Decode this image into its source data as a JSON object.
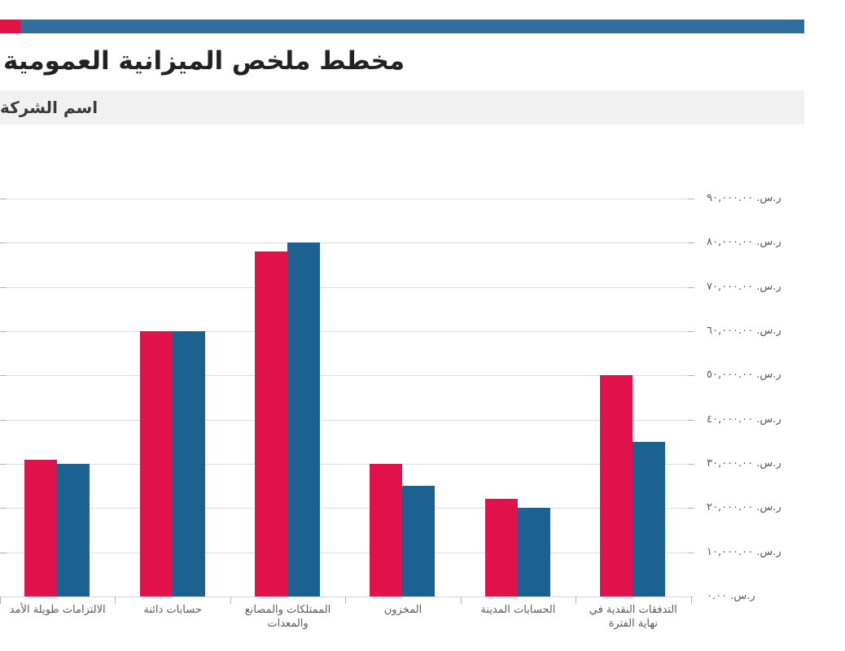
{
  "header": {
    "banner": {
      "accent_color": "#e01347",
      "bar_color": "#2e6d9c"
    },
    "title": "مخطط ملخص الميزانية العمومية",
    "company_row": {
      "label": "اسم الشركة",
      "background": "#f1f1f1"
    }
  },
  "chart_data": {
    "type": "bar",
    "title": "مخطط ملخص الميزانية العمومية",
    "direction": "rtl",
    "grid": true,
    "legend_position": "none",
    "categories": [
      "التدفقات النقدية في نهاية الفترة",
      "الحسابات المدينة",
      "المخزون",
      "الممتلكات والمصانع والمعدات",
      "حسابات دائنة",
      "الالتزامات طويلة الأمد"
    ],
    "series": [
      {
        "name": "red-series",
        "color": "#e0114b",
        "position_in_pair": "left",
        "values": [
          50000,
          22000,
          30000,
          78000,
          60000,
          31000
        ]
      },
      {
        "name": "blue-series",
        "color": "#1c6291",
        "position_in_pair": "right",
        "values": [
          35000,
          20000,
          25000,
          80000,
          60000,
          30000
        ]
      }
    ],
    "y_axis": {
      "side": "right",
      "min": 0,
      "max": 90000,
      "step": 10000,
      "currency": "ر.س.",
      "tick_labels_top_to_bottom": [
        "ر.س. ٩٠,٠٠٠.٠٠",
        "ر.س. ٨٠,٠٠٠.٠٠",
        "ر.س. ٧٠,٠٠٠.٠٠",
        "ر.س. ٦٠,٠٠٠.٠٠",
        "ر.س. ٥٠,٠٠٠.٠٠",
        "ر.س. ٤٠,٠٠٠.٠٠",
        "ر.س. ٣٠,٠٠٠.٠٠",
        "ر.س. ٢٠,٠٠٠.٠٠",
        "ر.س. ١٠,٠٠٠.٠٠",
        "ر.س. ٠.٠٠"
      ]
    },
    "colors": {
      "gridline": "#dcdcdc",
      "axis_text": "#595959",
      "category_text": "#595959"
    }
  }
}
